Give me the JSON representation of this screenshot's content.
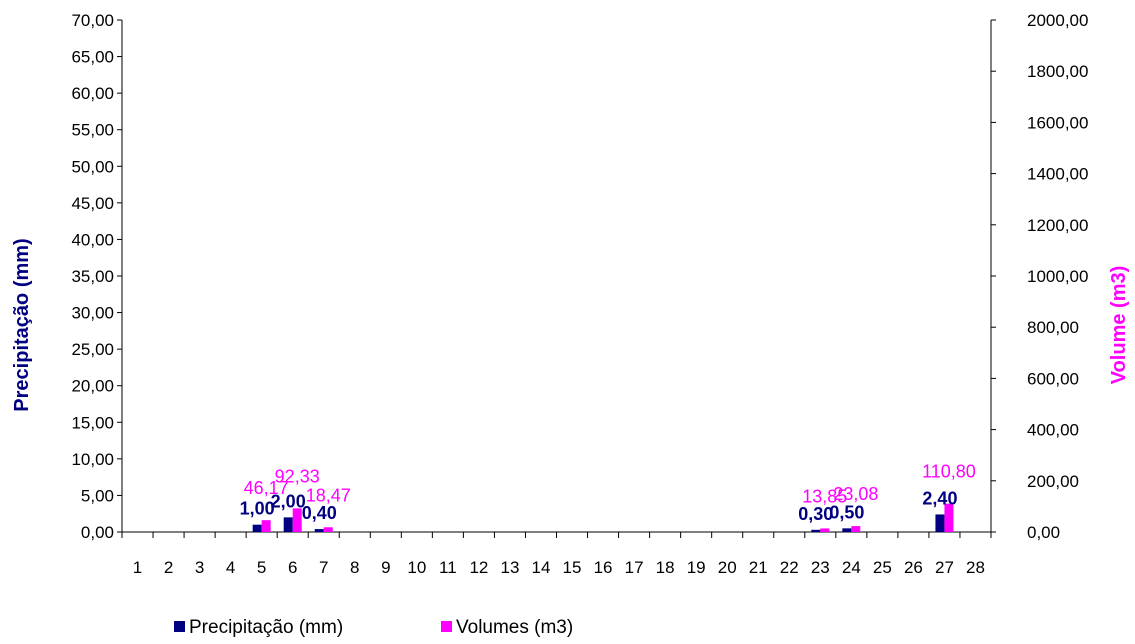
{
  "chart_data": {
    "type": "bar",
    "categories": [
      "1",
      "2",
      "3",
      "4",
      "5",
      "6",
      "7",
      "8",
      "9",
      "10",
      "11",
      "12",
      "13",
      "14",
      "15",
      "16",
      "17",
      "18",
      "19",
      "20",
      "21",
      "22",
      "23",
      "24",
      "25",
      "26",
      "27",
      "28"
    ],
    "series": [
      {
        "name": "Precipitação (mm)",
        "axis": "left",
        "color": "#000080",
        "values": [
          0,
          0,
          0,
          0,
          1.0,
          2.0,
          0.4,
          0,
          0,
          0,
          0,
          0,
          0,
          0,
          0,
          0,
          0,
          0,
          0,
          0,
          0,
          0,
          0.3,
          0.5,
          0,
          0,
          2.4,
          0
        ],
        "labels": [
          "",
          "",
          "",
          "",
          "1,00",
          "2,00",
          "0,40",
          "",
          "",
          "",
          "",
          "",
          "",
          "",
          "",
          "",
          "",
          "",
          "",
          "",
          "",
          "",
          "0,30",
          "0,50",
          "",
          "",
          "2,40",
          ""
        ]
      },
      {
        "name": "Volumes (m3)",
        "axis": "right",
        "color": "#FF00FF",
        "values": [
          0,
          0,
          0,
          0,
          46.17,
          92.33,
          18.47,
          0,
          0,
          0,
          0,
          0,
          0,
          0,
          0,
          0,
          0,
          0,
          0,
          0,
          0,
          0,
          13.85,
          23.08,
          0,
          0,
          110.8,
          0
        ],
        "labels": [
          "",
          "",
          "",
          "",
          "46,17",
          "92,33",
          "18,47",
          "",
          "",
          "",
          "",
          "",
          "",
          "",
          "",
          "",
          "",
          "",
          "",
          "",
          "",
          "",
          "13,85",
          "23,08",
          "",
          "",
          "110,80",
          ""
        ]
      }
    ],
    "y_left": {
      "label": "Precipitação (mm)",
      "color": "#000080",
      "range": [
        0,
        70
      ],
      "ticks": [
        "0,00",
        "5,00",
        "10,00",
        "15,00",
        "20,00",
        "25,00",
        "30,00",
        "35,00",
        "40,00",
        "45,00",
        "50,00",
        "55,00",
        "60,00",
        "65,00",
        "70,00"
      ]
    },
    "y_right": {
      "label": "Volume (m3)",
      "color": "#FF00FF",
      "range": [
        0,
        2000
      ],
      "ticks": [
        "0,00",
        "200,00",
        "400,00",
        "600,00",
        "800,00",
        "1000,00",
        "1200,00",
        "1400,00",
        "1600,00",
        "1800,00",
        "2000,00"
      ]
    },
    "grid": false,
    "legend_position": "bottom-left"
  }
}
